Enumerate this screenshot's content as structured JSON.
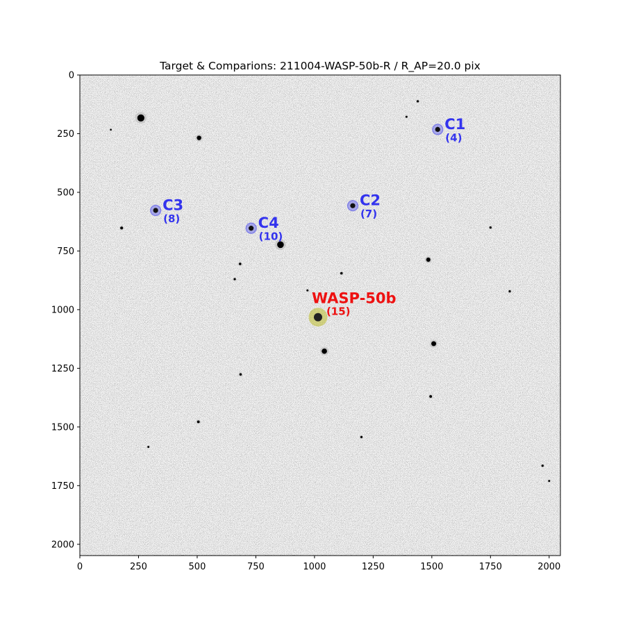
{
  "chart_data": {
    "type": "image",
    "title": "Target & Comparions: 211004-WASP-50b-R / R_AP=20.0 pix",
    "xlabel": "",
    "ylabel": "",
    "xlim": [
      0,
      2048
    ],
    "ylim": [
      2048,
      0
    ],
    "x_ticks": [
      0,
      250,
      500,
      750,
      1000,
      1250,
      1500,
      1750,
      2000
    ],
    "y_ticks": [
      0,
      250,
      500,
      750,
      1000,
      1250,
      1500,
      1750,
      2000
    ],
    "target": {
      "name": "WASP-50b",
      "index": "(15)",
      "x": 1015,
      "y": 1032,
      "color": "#ee1111"
    },
    "comparisons": [
      {
        "name": "C1",
        "index": "(4)",
        "x": 1525,
        "y": 232,
        "color": "#3333ee"
      },
      {
        "name": "C2",
        "index": "(7)",
        "x": 1163,
        "y": 557,
        "color": "#3333ee"
      },
      {
        "name": "C3",
        "index": "(8)",
        "x": 323,
        "y": 577,
        "color": "#3333ee"
      },
      {
        "name": "C4",
        "index": "(10)",
        "x": 730,
        "y": 653,
        "color": "#3333ee"
      }
    ],
    "field_stars": [
      {
        "x": 260,
        "y": 183,
        "mag": 3.2
      },
      {
        "x": 508,
        "y": 268,
        "mag": 2.0
      },
      {
        "x": 132,
        "y": 233,
        "mag": 0.8
      },
      {
        "x": 1440,
        "y": 112,
        "mag": 1.0
      },
      {
        "x": 1392,
        "y": 178,
        "mag": 0.9
      },
      {
        "x": 178,
        "y": 652,
        "mag": 1.3
      },
      {
        "x": 855,
        "y": 723,
        "mag": 3.0
      },
      {
        "x": 683,
        "y": 805,
        "mag": 1.1
      },
      {
        "x": 660,
        "y": 870,
        "mag": 1.0
      },
      {
        "x": 970,
        "y": 918,
        "mag": 0.9
      },
      {
        "x": 1115,
        "y": 845,
        "mag": 1.1
      },
      {
        "x": 1485,
        "y": 787,
        "mag": 1.9
      },
      {
        "x": 1750,
        "y": 650,
        "mag": 1.0
      },
      {
        "x": 1832,
        "y": 922,
        "mag": 1.0
      },
      {
        "x": 1042,
        "y": 1177,
        "mag": 2.4
      },
      {
        "x": 1508,
        "y": 1145,
        "mag": 2.2
      },
      {
        "x": 685,
        "y": 1276,
        "mag": 1.1
      },
      {
        "x": 1495,
        "y": 1370,
        "mag": 1.2
      },
      {
        "x": 505,
        "y": 1478,
        "mag": 1.2
      },
      {
        "x": 1200,
        "y": 1543,
        "mag": 1.0
      },
      {
        "x": 292,
        "y": 1585,
        "mag": 0.9
      },
      {
        "x": 1972,
        "y": 1665,
        "mag": 1.0
      },
      {
        "x": 2000,
        "y": 1730,
        "mag": 0.9
      }
    ]
  }
}
